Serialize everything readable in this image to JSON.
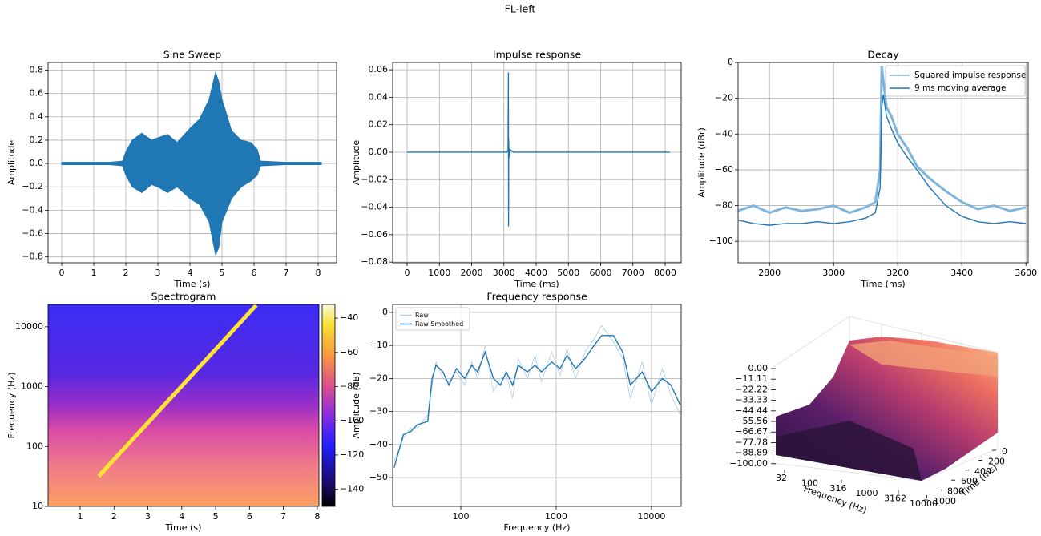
{
  "suptitle": "FL-left",
  "chart_data": [
    {
      "type": "area",
      "title": "Sine Sweep",
      "xlabel": "Time (s)",
      "ylabel": "Amplitude",
      "grid": true,
      "x": [
        0,
        0.5,
        1,
        1.5,
        1.9,
        2.0,
        2.2,
        2.5,
        2.8,
        3.0,
        3.3,
        3.6,
        4.0,
        4.3,
        4.6,
        4.8,
        4.9,
        5.0,
        5.3,
        5.6,
        5.9,
        6.1,
        6.2,
        7,
        8.1
      ],
      "series": [
        {
          "color": "#1f77b4",
          "values": [
            0.01,
            0.01,
            0.01,
            0.01,
            0.02,
            0.1,
            0.2,
            0.26,
            0.2,
            0.22,
            0.25,
            0.18,
            0.3,
            0.38,
            0.55,
            0.78,
            0.7,
            0.55,
            0.28,
            0.2,
            0.18,
            0.12,
            0.02,
            0.01,
            0.01
          ]
        },
        {
          "color": "#1f77b4",
          "values": [
            -0.01,
            -0.01,
            -0.01,
            -0.01,
            -0.02,
            -0.1,
            -0.2,
            -0.25,
            -0.18,
            -0.2,
            -0.25,
            -0.2,
            -0.3,
            -0.35,
            -0.5,
            -0.78,
            -0.72,
            -0.5,
            -0.3,
            -0.2,
            -0.15,
            -0.1,
            -0.02,
            -0.01,
            -0.01
          ]
        }
      ],
      "xlim": [
        -0.425,
        8.575
      ],
      "xticks": [
        0,
        1,
        2,
        3,
        4,
        5,
        6,
        7,
        8
      ],
      "ylim": [
        -0.85,
        0.865
      ],
      "yticks": [
        {
          "value": -0.8,
          "label": "−0.8"
        },
        {
          "value": -0.6,
          "label": "−0.6"
        },
        {
          "value": -0.4,
          "label": "−0.4"
        },
        {
          "value": -0.2,
          "label": "−0.2"
        },
        {
          "value": 0,
          "label": "0.0"
        },
        0.2,
        0.4,
        0.6,
        0.8
      ]
    },
    {
      "type": "line",
      "title": "Impulse response",
      "xlabel": "Time (ms)",
      "ylabel": "Amplitude",
      "grid": true,
      "x": [
        0,
        3100,
        3130,
        3140,
        3145,
        3150,
        3160,
        3180,
        3300,
        8150
      ],
      "series": [
        {
          "color": "#1f77b4",
          "values": [
            0,
            0,
            0.002,
            0.058,
            -0.054,
            0.01,
            -0.004,
            0.002,
            0,
            0
          ]
        }
      ],
      "xlim": [
        -447,
        8497
      ],
      "xticks": [
        0,
        1000,
        2000,
        3000,
        4000,
        5000,
        6000,
        7000,
        8000
      ],
      "ylim": [
        -0.0805,
        0.0653
      ],
      "yticks": [
        {
          "value": -0.08,
          "label": "−0.08"
        },
        {
          "value": -0.06,
          "label": "−0.06"
        },
        {
          "value": -0.04,
          "label": "−0.04"
        },
        {
          "value": -0.02,
          "label": "−0.02"
        },
        {
          "value": 0,
          "label": "0.00"
        },
        0.02,
        0.04,
        0.06
      ]
    },
    {
      "type": "line",
      "title": "Decay",
      "xlabel": "Time (ms)",
      "ylabel": "Amplitude (dBr)",
      "grid": true,
      "legend": "upper right",
      "x": [
        2700,
        2750,
        2800,
        2850,
        2900,
        2950,
        3000,
        3050,
        3100,
        3130,
        3145,
        3150,
        3155,
        3165,
        3180,
        3200,
        3230,
        3260,
        3300,
        3350,
        3400,
        3450,
        3500,
        3550,
        3600
      ],
      "series": [
        {
          "name": "Squared impulse response",
          "color": "#7fb5dd",
          "values": [
            -83,
            -80,
            -84,
            -81,
            -83,
            -82,
            -80,
            -84,
            -81,
            -78,
            -60,
            -2,
            -10,
            -25,
            -30,
            -40,
            -48,
            -58,
            -65,
            -72,
            -78,
            -82,
            -80,
            -83,
            -81
          ]
        },
        {
          "name": "9 ms moving average",
          "color": "#1f77b4",
          "values": [
            -88,
            -90,
            -91,
            -90,
            -90,
            -89,
            -90,
            -89,
            -87,
            -84,
            -70,
            -25,
            -18,
            -30,
            -37,
            -45,
            -53,
            -60,
            -70,
            -80,
            -86,
            -89,
            -90,
            -89,
            -90
          ]
        }
      ],
      "xlim": [
        2702,
        3607
      ],
      "xticks": [
        2800,
        3000,
        3200,
        3400,
        3600
      ],
      "ylim": [
        -112,
        0
      ],
      "yticks": [
        {
          "value": -100,
          "label": "−100"
        },
        {
          "value": -80,
          "label": "−80"
        },
        {
          "value": -60,
          "label": "−60"
        },
        {
          "value": -40,
          "label": "−40"
        },
        {
          "value": -20,
          "label": "−20"
        },
        0
      ]
    },
    {
      "type": "spectrogram",
      "title": "Spectrogram",
      "xlabel": "Time (s)",
      "ylabel": "Frequency (Hz)",
      "grid": false,
      "yscale": "log",
      "x": [
        1.55,
        6.2
      ],
      "series": [
        {
          "color": "#ffe433",
          "values": [
            32,
            23000
          ]
        }
      ],
      "xlim": [
        0.054,
        8.05
      ],
      "xticks": [
        1,
        2,
        3,
        4,
        5,
        6,
        7,
        8
      ],
      "ylim": [
        10,
        23600
      ],
      "yticks": [
        10,
        100,
        1000,
        10000
      ],
      "colorbar": {
        "lim": [
          -150,
          -32
        ],
        "ticks": [
          {
            "value": -140,
            "label": "−140"
          },
          {
            "value": -120,
            "label": "−120"
          },
          {
            "value": -100,
            "label": "−100"
          },
          {
            "value": -80,
            "label": "−80"
          },
          {
            "value": -60,
            "label": "−60"
          },
          {
            "value": -40,
            "label": "−40"
          }
        ]
      }
    },
    {
      "type": "line",
      "title": "Frequency response",
      "xlabel": "Frequency (Hz)",
      "ylabel": "Amplitude (dB)",
      "grid": true,
      "xscale": "log",
      "legend": "upper left",
      "x": [
        20,
        25,
        30,
        35,
        45,
        50,
        55,
        65,
        75,
        90,
        110,
        130,
        150,
        180,
        220,
        260,
        300,
        350,
        400,
        500,
        600,
        700,
        900,
        1100,
        1300,
        1600,
        2000,
        2500,
        3000,
        4000,
        5000,
        6000,
        8000,
        10000,
        13000,
        16000,
        20000
      ],
      "series": [
        {
          "name": "Raw",
          "color": "#a9cbe6",
          "values": [
            -45,
            -38,
            -35,
            -35,
            -31,
            -22,
            -15,
            -20,
            -21,
            -18,
            -22,
            -15,
            -20,
            -10,
            -24,
            -20,
            -19,
            -26,
            -14,
            -20,
            -13,
            -21,
            -12,
            -19,
            -11,
            -20,
            -12,
            -8,
            -4,
            -9,
            -14,
            -26,
            -15,
            -28,
            -17,
            -25,
            -31
          ]
        },
        {
          "name": "Raw Smoothed",
          "color": "#1f77b4",
          "values": [
            -47,
            -37,
            -36,
            -34,
            -33,
            -20,
            -16,
            -18,
            -22,
            -17,
            -20,
            -16,
            -18,
            -12,
            -20,
            -22,
            -18,
            -22,
            -16,
            -18,
            -16,
            -18,
            -15,
            -17,
            -13,
            -17,
            -14,
            -10,
            -7,
            -7,
            -12,
            -22,
            -18,
            -24,
            -20,
            -22,
            -28
          ]
        }
      ],
      "xlim": [
        19.3,
        20500
      ],
      "xticks": [
        100,
        1000,
        10000
      ],
      "ylim": [
        -58.7,
        2.4
      ],
      "yticks": [
        {
          "value": -50,
          "label": "−50"
        },
        {
          "value": -40,
          "label": "−40"
        },
        {
          "value": -30,
          "label": "−30"
        },
        {
          "value": -20,
          "label": "−20"
        },
        {
          "value": -10,
          "label": "−10"
        },
        0
      ]
    },
    {
      "type": "surface3d",
      "xlabel": "Frequency (Hz)",
      "ylabel": "Time (ms)",
      "xticks": [
        32,
        100,
        316,
        1000,
        3162,
        10000
      ],
      "yticks": [
        0,
        200,
        400,
        600,
        800,
        1000
      ],
      "zticks": [
        {
          "value": 0,
          "label": "0.00"
        },
        {
          "value": -11.11,
          "label": "−11.11"
        },
        {
          "value": -22.22,
          "label": "−22.22"
        },
        {
          "value": -33.33,
          "label": "−33.33"
        },
        {
          "value": -44.44,
          "label": "−44.44"
        },
        {
          "value": -55.56,
          "label": "−55.56"
        },
        {
          "value": -66.67,
          "label": "−66.67"
        },
        {
          "value": -77.78,
          "label": "−77.78"
        },
        {
          "value": -88.89,
          "label": "−88.89"
        },
        {
          "value": -100,
          "label": "−100.00"
        }
      ]
    }
  ]
}
